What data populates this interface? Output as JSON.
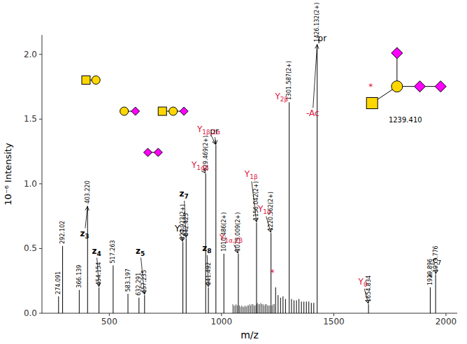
{
  "chart_data": {
    "type": "spectrum",
    "xlabel": "m/z",
    "ylabel": "10⁻⁶ Intensity",
    "xlim": [
      200,
      2050
    ],
    "ylim": [
      0,
      2.15
    ],
    "xticks": [
      500,
      1000,
      1500,
      2000
    ],
    "yticks": [
      {
        "value": 0,
        "label": "0.0"
      },
      0.5,
      {
        "value": 1,
        "label": "1.0"
      },
      1.5,
      {
        "value": 2,
        "label": "2.0"
      }
    ],
    "background": "#ffffff",
    "series": [
      {
        "color": "black",
        "x": [
          274.091,
          292.102,
          366.139,
          403.22,
          454.154,
          517.263,
          583.197,
          632.291,
          657.235,
          827.923,
          842.425,
          929.469,
          941.492,
          975.0,
          1010.486,
          1075.009,
          1156.042,
          1220.562,
          1241.0,
          1252.0,
          1263.0,
          1274.0,
          1285.0,
          1301.587,
          1312.0,
          1323.0,
          1334.0,
          1345.0,
          1356.0,
          1367.0,
          1378.0,
          1389.0,
          1400.0,
          1411.0,
          1426.132,
          1654.834,
          1929.896,
          1953.776
        ],
        "values": [
          0.13,
          0.52,
          0.18,
          0.83,
          0.2,
          0.37,
          0.15,
          0.12,
          0.14,
          0.55,
          0.58,
          1.08,
          0.2,
          1.3,
          0.46,
          0.46,
          0.7,
          0.62,
          0.2,
          0.14,
          0.12,
          0.13,
          0.11,
          1.63,
          0.11,
          0.1,
          0.1,
          0.11,
          0.09,
          0.09,
          0.09,
          0.09,
          0.08,
          0.08,
          2.08,
          0.07,
          0.2,
          0.3
        ]
      },
      {
        "color": "black",
        "x": [
          1050,
          1055,
          1060,
          1065,
          1070,
          1080,
          1085,
          1090,
          1095,
          1100,
          1105,
          1110,
          1115,
          1120,
          1125,
          1130,
          1135,
          1140,
          1145,
          1150,
          1155,
          1160,
          1165,
          1170,
          1175,
          1180,
          1185,
          1190,
          1195,
          1200,
          1205,
          1210,
          1215,
          1225,
          1230,
          1235
        ],
        "values": [
          0.07,
          0.06,
          0.06,
          0.07,
          0.06,
          0.06,
          0.05,
          0.06,
          0.05,
          0.05,
          0.06,
          0.05,
          0.06,
          0.06,
          0.07,
          0.06,
          0.07,
          0.07,
          0.06,
          0.06,
          0.07,
          0.08,
          0.07,
          0.07,
          0.08,
          0.07,
          0.07,
          0.06,
          0.07,
          0.07,
          0.06,
          0.06,
          0.06,
          0.06,
          0.07,
          0.07
        ]
      }
    ],
    "peak_labels": [
      {
        "text": "274.091",
        "x": 274.091,
        "y": 0.13,
        "color": "black"
      },
      {
        "text": "292.102",
        "x": 292.102,
        "y": 0.52,
        "color": "black"
      },
      {
        "text": "366.139",
        "x": 366.139,
        "y": 0.18,
        "color": "black"
      },
      {
        "text": "403.220",
        "x": 403.22,
        "y": 0.83,
        "color": "black"
      },
      {
        "text": "454.154",
        "x": 454.154,
        "y": 0.2,
        "color": "black"
      },
      {
        "text": "517.263",
        "x": 517.263,
        "y": 0.37,
        "color": "black"
      },
      {
        "text": "583.197",
        "x": 583.197,
        "y": 0.15,
        "color": "black"
      },
      {
        "text": "632.291",
        "x": 632.291,
        "y": 0.12,
        "color": "black"
      },
      {
        "text": "657.235",
        "x": 657.235,
        "y": 0.14,
        "color": "black"
      },
      {
        "text": "827.923(2+)",
        "x": 827.923,
        "y": 0.55,
        "color": "black"
      },
      {
        "text": "842.425",
        "x": 842.425,
        "y": 0.58,
        "color": "black"
      },
      {
        "text": "929.469(2+)",
        "x": 929.469,
        "y": 1.08,
        "color": "black"
      },
      {
        "text": "941.492",
        "x": 941.492,
        "y": 0.2,
        "color": "black"
      },
      {
        "text": "1010.486(2+)",
        "x": 1010.486,
        "y": 0.46,
        "color": "black"
      },
      {
        "text": "1075.009(2+)",
        "x": 1075.009,
        "y": 0.46,
        "color": "black"
      },
      {
        "text": "1156.042(2+)",
        "x": 1156.042,
        "y": 0.7,
        "color": "black"
      },
      {
        "text": "1220.562(2+)",
        "x": 1220.562,
        "y": 0.62,
        "color": "black"
      },
      {
        "text": "1301.587(2+)",
        "x": 1301.587,
        "y": 1.63,
        "color": "black"
      },
      {
        "text": "1426.132(2+)",
        "x": 1426.132,
        "y": 2.08,
        "color": "black"
      },
      {
        "text": "1654.834",
        "x": 1654.834,
        "y": 0.07,
        "color": "black"
      },
      {
        "text": "1929.896",
        "x": 1929.896,
        "y": 0.2,
        "color": "black"
      },
      {
        "text": "1953.776",
        "x": 1953.776,
        "y": 0.3,
        "color": "black"
      }
    ],
    "annotations": [
      {
        "text": "z",
        "subscript": "3",
        "x": 403.22,
        "y": 0.83,
        "text_x": 390,
        "text_y": 0.57,
        "color": "black",
        "bold": true
      },
      {
        "text": "z",
        "subscript": "4",
        "x": 454.154,
        "y": 0.2,
        "text_x": 443,
        "text_y": 0.44,
        "color": "black",
        "bold": true
      },
      {
        "text": "z",
        "subscript": "5",
        "x": 657.235,
        "y": 0.14,
        "text_x": 638,
        "text_y": 0.44,
        "color": "black",
        "bold": true
      },
      {
        "text": "z",
        "subscript": "7",
        "x": 842.425,
        "y": 0.58,
        "text_x": 833,
        "text_y": 0.88,
        "color": "black",
        "bold": true
      },
      {
        "text": "z",
        "subscript": "8",
        "x": 941.492,
        "y": 0.2,
        "text_x": 935,
        "text_y": 0.46,
        "color": "black",
        "bold": true
      },
      {
        "text": "pr",
        "x": 975.0,
        "y": 1.3,
        "text_x": 968,
        "text_y": 1.36,
        "color": "black"
      },
      {
        "text": "Y",
        "subscript": "0",
        "x": 827.923,
        "y": 0.55,
        "text_x": 812,
        "text_y": 0.61,
        "color": "black"
      },
      {
        "text": "c",
        "subscript": "7",
        "x": 1953.776,
        "y": 0.3,
        "text_x": 1960,
        "text_y": 0.37,
        "color": "black"
      },
      {
        "text": "Y",
        "subscript": "1αβ",
        "x": 929.469,
        "y": 1.08,
        "text_x": 905,
        "text_y": 1.1,
        "color": "crimson"
      },
      {
        "text": "Y",
        "subscript": "1β,2α",
        "x": 975.0,
        "y": 1.3,
        "text_x": 943,
        "text_y": 1.38,
        "color": "crimson"
      },
      {
        "text": "Y",
        "subscript": "2β",
        "x": 1301.587,
        "y": 1.63,
        "text_x": 1268,
        "text_y": 1.63,
        "color": "crimson"
      },
      {
        "text": "-Ac",
        "x": 1426.132,
        "y": 2.08,
        "text_x": 1406,
        "text_y": 1.5,
        "color": "crimson"
      },
      {
        "text": "Y",
        "subscript": "1β",
        "x": 1156.042,
        "y": 0.7,
        "text_x": 1132,
        "text_y": 1.03,
        "color": "crimson"
      },
      {
        "text": "Y",
        "subscript": "1α",
        "x": 1220.562,
        "y": 0.62,
        "text_x": 1192,
        "text_y": 0.76,
        "color": "crimson"
      },
      {
        "text": "Y",
        "subscript": "1α,2β",
        "x": 1075.009,
        "y": 0.46,
        "text_x": 1043,
        "text_y": 0.54,
        "color": "crimson"
      },
      {
        "text": "Y",
        "subscript": "0",
        "x": 1654.834,
        "y": 0.07,
        "text_x": 1630,
        "text_y": 0.2,
        "color": "crimson"
      }
    ],
    "texts": [
      {
        "text": "*",
        "x": 1929,
        "y": 0.25,
        "color": "black"
      },
      {
        "text": "*",
        "x": 1226,
        "y": 0.28,
        "color": "crimson"
      },
      {
        "text": "pr",
        "x": 1429,
        "y": 2.09,
        "color": "black",
        "align": "left"
      }
    ],
    "glycan": {
      "label": "1239.410",
      "star": "*",
      "star_color": "crimson",
      "square_color": "#FFD700",
      "circle_color": "#FFD700",
      "diamond_color": "magenta"
    }
  }
}
